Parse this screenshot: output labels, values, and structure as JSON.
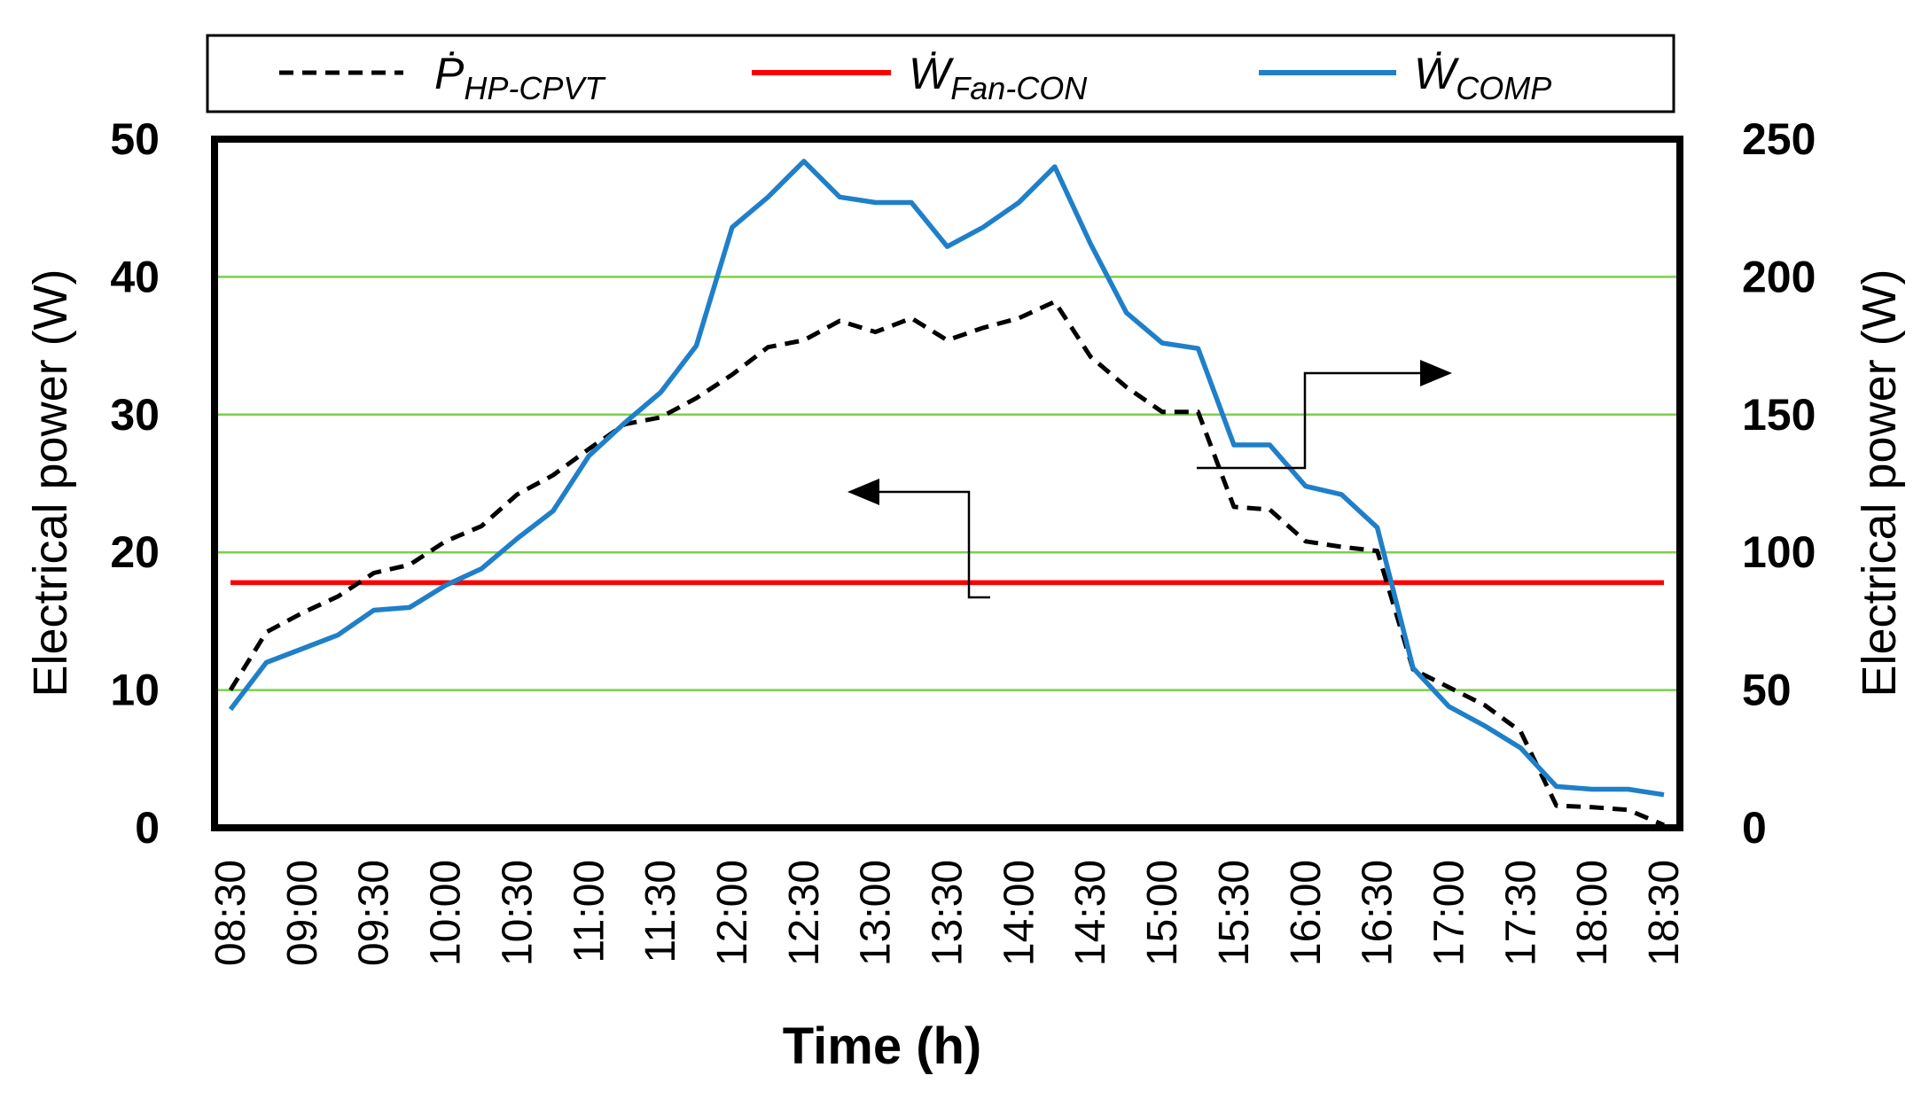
{
  "chart_data": {
    "type": "line",
    "title": "",
    "xlabel": "Time (h)",
    "ylabel_left": "Electrical power (W)",
    "ylabel_right": "Electrical power (W)",
    "ylim_left": [
      0,
      50
    ],
    "ylim_right": [
      0,
      250
    ],
    "yticks_left": [
      "0",
      "10",
      "20",
      "30",
      "40",
      "50"
    ],
    "yticks_right": [
      "0",
      "50",
      "100",
      "150",
      "200",
      "250"
    ],
    "xticks": [
      "08:30",
      "09:00",
      "09:30",
      "10:00",
      "10:30",
      "11:00",
      "11:30",
      "12:00",
      "12:30",
      "13:00",
      "13:30",
      "14:00",
      "14:30",
      "15:00",
      "15:30",
      "16:00",
      "16:30",
      "17:00",
      "17:30",
      "18:00",
      "18:30"
    ],
    "grid": "horizontal",
    "colors": {
      "p_hp": "#000000",
      "fan": "#ff0000",
      "comp": "#1f7fc9",
      "grid": "#7cd04a"
    },
    "series": [
      {
        "name": "P_HP-CPVT",
        "legend_symbol": "Ṗ",
        "legend_sub": "HP-CPVT",
        "style": "dashed",
        "axis": "left",
        "x": [
          0,
          15,
          30,
          45,
          60,
          75,
          90,
          105,
          120,
          135,
          150,
          165,
          180,
          195,
          210,
          225,
          240,
          255,
          270,
          285,
          300,
          315,
          330,
          345,
          360,
          375,
          390,
          405,
          420,
          435,
          450,
          465,
          480,
          495,
          510,
          525,
          540,
          555,
          570,
          585,
          600
        ],
        "values": [
          10,
          14.2,
          15.6,
          16.8,
          18.5,
          19.1,
          20.8,
          21.9,
          24.2,
          25.6,
          27.5,
          29.3,
          29.8,
          31.2,
          32.9,
          34.9,
          35.4,
          36.8,
          36.0,
          37.0,
          35.4,
          36.3,
          37.0,
          38.2,
          34.2,
          32.0,
          30.2,
          30.2,
          23.3,
          23.1,
          20.8,
          20.4,
          20.1,
          11.5,
          10.2,
          8.9,
          7.0,
          1.6,
          1.5,
          1.3,
          0.2
        ]
      },
      {
        "name": "W_Fan-CON",
        "legend_symbol": "Ẇ",
        "legend_sub": "Fan-CON",
        "style": "solid",
        "axis": "left",
        "x": [
          0,
          600
        ],
        "values": [
          17.8,
          17.8
        ]
      },
      {
        "name": "W_COMP",
        "legend_symbol": "Ẇ",
        "legend_sub": "COMP",
        "style": "solid",
        "axis": "right",
        "x": [
          0,
          15,
          30,
          45,
          60,
          75,
          90,
          105,
          120,
          135,
          150,
          165,
          180,
          195,
          210,
          225,
          240,
          255,
          270,
          285,
          300,
          315,
          330,
          345,
          360,
          375,
          390,
          405,
          420,
          435,
          450,
          465,
          480,
          495,
          510,
          525,
          540,
          555,
          570,
          585,
          600
        ],
        "values": [
          43,
          60,
          65,
          70,
          79,
          80,
          88,
          94,
          105,
          115,
          135,
          147,
          158,
          175,
          218,
          229,
          242,
          229,
          227,
          227,
          211,
          218,
          227,
          240,
          212,
          187,
          176,
          174,
          139,
          139,
          124,
          121,
          109,
          58,
          44,
          37,
          29,
          15,
          14,
          14,
          12
        ]
      }
    ],
    "annotations": [
      {
        "label": "arrow-left",
        "meaning": "dashed and red curves read on left axis"
      },
      {
        "label": "arrow-right",
        "meaning": "blue curve read on right axis"
      }
    ]
  }
}
